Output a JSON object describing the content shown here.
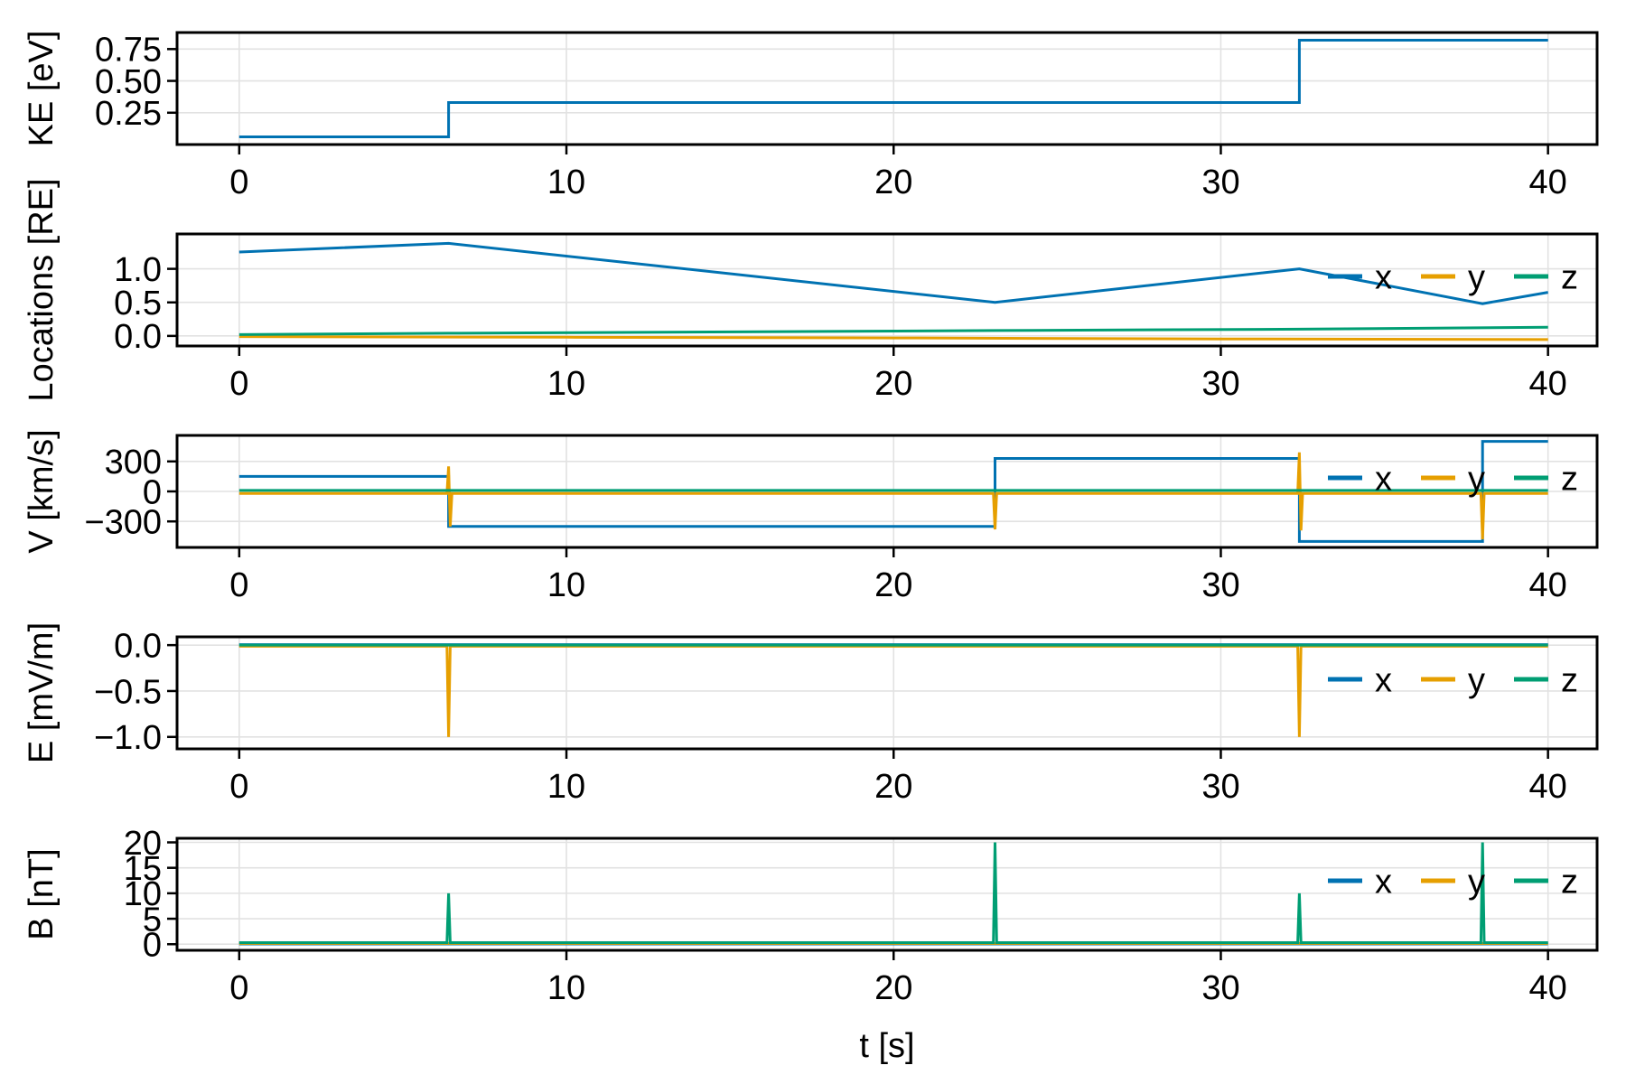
{
  "figure": {
    "xlabel": "t [s]",
    "background": "#ffffff",
    "axis_color": "#000000",
    "grid_color": "#e2e2e2",
    "series_colors": {
      "x": "#0072B2",
      "y": "#E69F00",
      "z": "#009E73"
    }
  },
  "chart_data": [
    {
      "type": "line",
      "id": "ke",
      "ylabel": "KE [eV]",
      "xlim": [
        -1.9,
        41.5
      ],
      "ylim": [
        0.0,
        0.88
      ],
      "grid": true,
      "xticks": [
        {
          "v": 0,
          "label": "0"
        },
        {
          "v": 10,
          "label": "10"
        },
        {
          "v": 20,
          "label": "20"
        },
        {
          "v": 30,
          "label": "30"
        },
        {
          "v": 40,
          "label": "40"
        }
      ],
      "yticks": [
        {
          "v": 0.25,
          "label": "0.25"
        },
        {
          "v": 0.5,
          "label": "0.50"
        },
        {
          "v": 0.75,
          "label": "0.75"
        }
      ],
      "legend": null,
      "series": [
        {
          "name": "KE",
          "color": "#0072B2",
          "points": [
            [
              0,
              0.06
            ],
            [
              6.4,
              0.06
            ],
            [
              6.4,
              0.33
            ],
            [
              32.4,
              0.33
            ],
            [
              32.4,
              0.82
            ],
            [
              40,
              0.82
            ]
          ]
        }
      ]
    },
    {
      "type": "line",
      "id": "locations",
      "ylabel": "Locations [RE]",
      "xlim": [
        -1.9,
        41.5
      ],
      "ylim": [
        -0.15,
        1.52
      ],
      "grid": true,
      "xticks": [
        {
          "v": 0,
          "label": "0"
        },
        {
          "v": 10,
          "label": "10"
        },
        {
          "v": 20,
          "label": "20"
        },
        {
          "v": 30,
          "label": "30"
        },
        {
          "v": 40,
          "label": "40"
        }
      ],
      "yticks": [
        {
          "v": 0.0,
          "label": "0.0"
        },
        {
          "v": 0.5,
          "label": "0.5"
        },
        {
          "v": 1.0,
          "label": "1.0"
        }
      ],
      "legend": {
        "position": "right-inside",
        "entries": [
          {
            "label": "x",
            "color": "#0072B2"
          },
          {
            "label": "y",
            "color": "#E69F00"
          },
          {
            "label": "z",
            "color": "#009E73"
          }
        ]
      },
      "series": [
        {
          "name": "x",
          "color": "#0072B2",
          "points": [
            [
              0,
              1.25
            ],
            [
              6.4,
              1.38
            ],
            [
              23.1,
              0.5
            ],
            [
              32.4,
              1.0
            ],
            [
              38,
              0.48
            ],
            [
              40,
              0.65
            ]
          ]
        },
        {
          "name": "y",
          "color": "#E69F00",
          "points": [
            [
              0,
              -0.01
            ],
            [
              10,
              -0.02
            ],
            [
              20,
              -0.03
            ],
            [
              30,
              -0.045
            ],
            [
              40,
              -0.055
            ]
          ]
        },
        {
          "name": "z",
          "color": "#009E73",
          "points": [
            [
              0,
              0.02
            ],
            [
              6.4,
              0.04
            ],
            [
              23.1,
              0.08
            ],
            [
              32.4,
              0.1
            ],
            [
              40,
              0.13
            ]
          ]
        }
      ]
    },
    {
      "type": "line",
      "id": "v",
      "ylabel": "V [km/s]",
      "xlim": [
        -1.9,
        41.5
      ],
      "ylim": [
        -560,
        560
      ],
      "grid": true,
      "xticks": [
        {
          "v": 0,
          "label": "0"
        },
        {
          "v": 10,
          "label": "10"
        },
        {
          "v": 20,
          "label": "20"
        },
        {
          "v": 30,
          "label": "30"
        },
        {
          "v": 40,
          "label": "40"
        }
      ],
      "yticks": [
        {
          "v": -300,
          "label": "−300"
        },
        {
          "v": 0,
          "label": "0"
        },
        {
          "v": 300,
          "label": "300"
        }
      ],
      "legend": {
        "position": "right-inside",
        "entries": [
          {
            "label": "x",
            "color": "#0072B2"
          },
          {
            "label": "y",
            "color": "#E69F00"
          },
          {
            "label": "z",
            "color": "#009E73"
          }
        ]
      },
      "series": [
        {
          "name": "x",
          "color": "#0072B2",
          "points": [
            [
              0,
              150
            ],
            [
              6.4,
              150
            ],
            [
              6.4,
              -350
            ],
            [
              23.1,
              -350
            ],
            [
              23.1,
              330
            ],
            [
              32.4,
              330
            ],
            [
              32.4,
              -500
            ],
            [
              38,
              -500
            ],
            [
              38,
              500
            ],
            [
              40,
              500
            ]
          ]
        },
        {
          "name": "y",
          "color": "#E69F00",
          "points": [
            [
              0,
              -20
            ],
            [
              6.35,
              -20
            ],
            [
              6.4,
              250
            ],
            [
              6.45,
              -350
            ],
            [
              6.5,
              -20
            ],
            [
              23.05,
              -20
            ],
            [
              23.1,
              -380
            ],
            [
              23.15,
              -20
            ],
            [
              32.35,
              -20
            ],
            [
              32.4,
              390
            ],
            [
              32.45,
              -390
            ],
            [
              32.5,
              -20
            ],
            [
              37.95,
              -20
            ],
            [
              38,
              -480
            ],
            [
              38.05,
              -20
            ],
            [
              40,
              -20
            ]
          ]
        },
        {
          "name": "z",
          "color": "#009E73",
          "points": [
            [
              0,
              10
            ],
            [
              40,
              10
            ]
          ]
        }
      ]
    },
    {
      "type": "line",
      "id": "e",
      "ylabel": "E [mV/m]",
      "xlim": [
        -1.9,
        41.5
      ],
      "ylim": [
        -1.13,
        0.09
      ],
      "grid": true,
      "xticks": [
        {
          "v": 0,
          "label": "0"
        },
        {
          "v": 10,
          "label": "10"
        },
        {
          "v": 20,
          "label": "20"
        },
        {
          "v": 30,
          "label": "30"
        },
        {
          "v": 40,
          "label": "40"
        }
      ],
      "yticks": [
        {
          "v": 0.0,
          "label": "0.0"
        },
        {
          "v": -0.5,
          "label": "−0.5"
        },
        {
          "v": -1.0,
          "label": "−1.0"
        }
      ],
      "legend": {
        "position": "right-inside",
        "entries": [
          {
            "label": "x",
            "color": "#0072B2"
          },
          {
            "label": "y",
            "color": "#E69F00"
          },
          {
            "label": "z",
            "color": "#009E73"
          }
        ]
      },
      "series": [
        {
          "name": "x",
          "color": "#0072B2",
          "points": [
            [
              0,
              0.005
            ],
            [
              40,
              0.005
            ]
          ]
        },
        {
          "name": "y",
          "color": "#E69F00",
          "points": [
            [
              0,
              -0.012
            ],
            [
              6.35,
              -0.012
            ],
            [
              6.4,
              -1.0
            ],
            [
              6.45,
              -0.012
            ],
            [
              32.35,
              -0.012
            ],
            [
              32.4,
              -1.0
            ],
            [
              32.45,
              -0.012
            ],
            [
              40,
              -0.012
            ]
          ]
        },
        {
          "name": "z",
          "color": "#009E73",
          "points": [
            [
              0,
              0.0
            ],
            [
              40,
              0.0
            ]
          ]
        }
      ]
    },
    {
      "type": "line",
      "id": "b",
      "ylabel": "B [nT]",
      "xlim": [
        -1.9,
        41.5
      ],
      "ylim": [
        -1.2,
        20.8
      ],
      "grid": true,
      "xticks": [
        {
          "v": 0,
          "label": "0"
        },
        {
          "v": 10,
          "label": "10"
        },
        {
          "v": 20,
          "label": "20"
        },
        {
          "v": 30,
          "label": "30"
        },
        {
          "v": 40,
          "label": "40"
        }
      ],
      "yticks": [
        {
          "v": 0,
          "label": "0"
        },
        {
          "v": 5,
          "label": "5"
        },
        {
          "v": 10,
          "label": "10"
        },
        {
          "v": 15,
          "label": "15"
        },
        {
          "v": 20,
          "label": "20"
        }
      ],
      "legend": {
        "position": "right-inside",
        "entries": [
          {
            "label": "x",
            "color": "#0072B2"
          },
          {
            "label": "y",
            "color": "#E69F00"
          },
          {
            "label": "z",
            "color": "#009E73"
          }
        ]
      },
      "series": [
        {
          "name": "x",
          "color": "#0072B2",
          "points": [
            [
              0,
              0.05
            ],
            [
              40,
              0.05
            ]
          ]
        },
        {
          "name": "y",
          "color": "#E69F00",
          "points": [
            [
              0,
              0.15
            ],
            [
              40,
              0.15
            ]
          ]
        },
        {
          "name": "z",
          "color": "#009E73",
          "points": [
            [
              0,
              0.3
            ],
            [
              6.35,
              0.3
            ],
            [
              6.4,
              10
            ],
            [
              6.45,
              0.3
            ],
            [
              23.05,
              0.3
            ],
            [
              23.1,
              20
            ],
            [
              23.15,
              0.3
            ],
            [
              32.35,
              0.3
            ],
            [
              32.4,
              10
            ],
            [
              32.45,
              0.3
            ],
            [
              37.95,
              0.3
            ],
            [
              38,
              20
            ],
            [
              38.05,
              0.3
            ],
            [
              40,
              0.3
            ]
          ]
        }
      ]
    }
  ]
}
